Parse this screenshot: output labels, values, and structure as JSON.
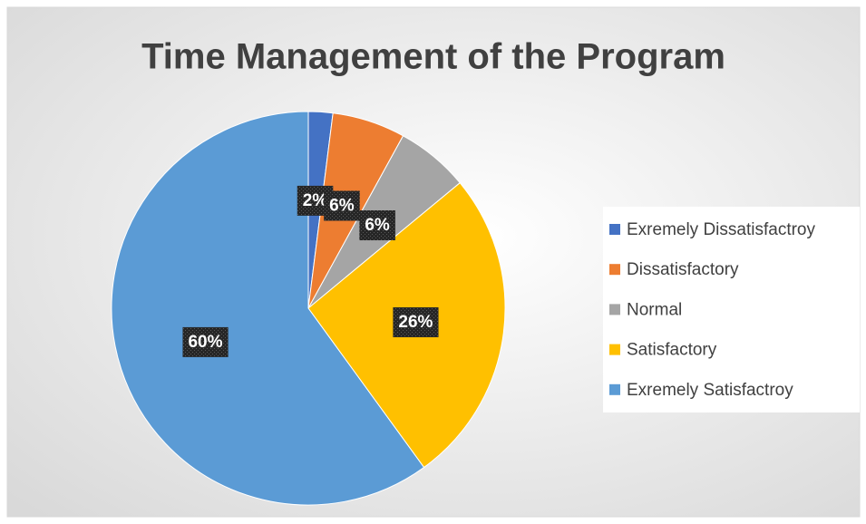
{
  "chart_data": {
    "type": "pie",
    "title": "Time Management of the Program",
    "categories": [
      "Exremely Dissatisfactroy",
      "Dissatisfactory",
      "Normal",
      "Satisfactory",
      "Exremely Satisfactroy"
    ],
    "values": [
      2,
      6,
      6,
      26,
      60
    ],
    "value_labels": [
      "2%",
      "6%",
      "6%",
      "26%",
      "60%"
    ],
    "colors": [
      "#4472c4",
      "#ed7d31",
      "#a5a5a5",
      "#ffc000",
      "#5b9bd5"
    ],
    "legend": "right"
  }
}
